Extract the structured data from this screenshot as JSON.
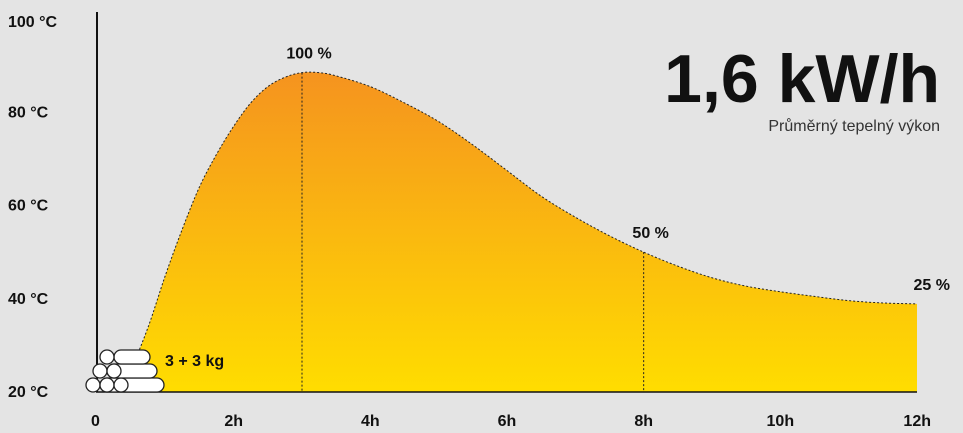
{
  "chart_data": {
    "type": "area",
    "x_unit": "h",
    "y_unit": "°C",
    "xlim": [
      0,
      12
    ],
    "ylim": [
      20,
      100
    ],
    "x_ticks": [
      {
        "value": 0,
        "label": "0"
      },
      {
        "value": 2,
        "label": "2h"
      },
      {
        "value": 4,
        "label": "4h"
      },
      {
        "value": 6,
        "label": "6h"
      },
      {
        "value": 8,
        "label": "8h"
      },
      {
        "value": 10,
        "label": "10h"
      },
      {
        "value": 12,
        "label": "12h"
      }
    ],
    "y_ticks": [
      {
        "value": 20,
        "label": "20 °C"
      },
      {
        "value": 40,
        "label": "40 °C"
      },
      {
        "value": 60,
        "label": "60 °C"
      },
      {
        "value": 80,
        "label": "80 °C"
      },
      {
        "value": 100,
        "label": "100 °C"
      }
    ],
    "series": [
      {
        "points": [
          [
            0.3,
            20
          ],
          [
            0.5,
            25
          ],
          [
            0.75,
            34
          ],
          [
            1.0,
            45
          ],
          [
            1.25,
            55
          ],
          [
            1.5,
            64
          ],
          [
            1.75,
            71
          ],
          [
            2.0,
            77
          ],
          [
            2.25,
            82
          ],
          [
            2.5,
            85.5
          ],
          [
            2.75,
            87.5
          ],
          [
            3.0,
            88.5
          ],
          [
            3.25,
            88.5
          ],
          [
            3.5,
            87.8
          ],
          [
            4.0,
            85.5
          ],
          [
            4.5,
            82
          ],
          [
            5.0,
            78
          ],
          [
            5.5,
            73
          ],
          [
            6.0,
            67.5
          ],
          [
            6.5,
            62
          ],
          [
            7.0,
            57.5
          ],
          [
            7.5,
            53.5
          ],
          [
            8.0,
            50
          ],
          [
            8.5,
            47
          ],
          [
            9.0,
            44.5
          ],
          [
            9.5,
            42.7
          ],
          [
            10.0,
            41.5
          ],
          [
            10.5,
            40.5
          ],
          [
            11.0,
            39.6
          ],
          [
            11.5,
            39.1
          ],
          [
            12.0,
            38.9
          ]
        ],
        "gradient_top": "#f5931f",
        "gradient_bottom": "#ffdd00"
      }
    ],
    "annotations": [
      {
        "label": "100 %",
        "x": 3.0,
        "y": 88.5
      },
      {
        "label": "50 %",
        "x": 8.0,
        "y": 50
      },
      {
        "label": "25 %",
        "x": 12.0,
        "y": 38.9
      }
    ],
    "headline": "1,6 kW/h",
    "subtitle": "Průměrný tepelný výkon",
    "fuel_label": "3 + 3 kg",
    "grid": false,
    "colors": {
      "background": "#e4e4e4",
      "text": "#111111",
      "axis": "#111111"
    }
  }
}
